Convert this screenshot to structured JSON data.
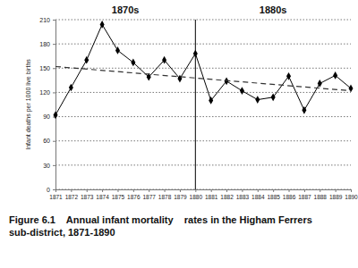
{
  "chart_data": {
    "type": "line",
    "title": "Figure 6.1    Annual infant mortality    rates in the Higham Ferrers sub-district, 1871-1890",
    "y_label": "Infant deaths per 1000 live births",
    "annotations": [
      "1870s",
      "1880s"
    ],
    "vline_x": 1880,
    "x": [
      1871,
      1872,
      1873,
      1874,
      1875,
      1876,
      1877,
      1878,
      1879,
      1880,
      1881,
      1882,
      1883,
      1884,
      1885,
      1886,
      1887,
      1888,
      1889,
      1890
    ],
    "series": [
      {
        "color": "#000000",
        "marker": "diamond",
        "line_style": "solid",
        "values": [
          92,
          126,
          160,
          204,
          172,
          157,
          139,
          160,
          137,
          168,
          110,
          134,
          122,
          111,
          114,
          140,
          98,
          131,
          141,
          125
        ]
      },
      {
        "color": "#333333",
        "line_style": "dashed",
        "x": [
          1871,
          1890
        ],
        "values": [
          152,
          122
        ]
      }
    ],
    "xlim": [
      1871,
      1890
    ],
    "xticks": [
      1871,
      1872,
      1873,
      1874,
      1875,
      1876,
      1877,
      1878,
      1879,
      1880,
      1881,
      1882,
      1883,
      1884,
      1885,
      1886,
      1887,
      1888,
      1889,
      1890
    ],
    "ylim": [
      0,
      210
    ],
    "yticks": [
      0,
      30,
      60,
      90,
      120,
      150,
      180,
      210
    ],
    "grid": true
  }
}
